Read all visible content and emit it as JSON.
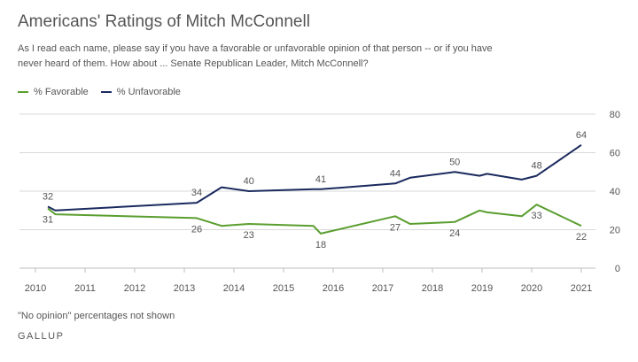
{
  "title": "Americans' Ratings of Mitch McConnell",
  "subtitle": "As I read each name, please say if you have a favorable or unfavorable opinion of that person -- or if you have never heard of them. How about ... Senate Republican Leader, Mitch McConnell?",
  "footnote": "\"No opinion\" percentages not shown",
  "brand": "GALLUP",
  "colors": {
    "favorable": "#5a9e2f",
    "unfavorable": "#1a2a5e",
    "grid": "#d9d9d9"
  },
  "chart_data": {
    "type": "line",
    "xlim": [
      2010,
      2021
    ],
    "ylim": [
      0,
      80
    ],
    "x_ticks": [
      "2010",
      "2011",
      "2012",
      "2013",
      "2014",
      "2015",
      "2016",
      "2017",
      "2018",
      "2019",
      "2020",
      "2021"
    ],
    "y_ticks": [
      "0",
      "20",
      "40",
      "60",
      "80"
    ],
    "grid": true,
    "legend_position": "top-left",
    "series": [
      {
        "name": "% Favorable",
        "color_key": "favorable",
        "x": [
          2010.25,
          2010.4,
          2013.25,
          2013.75,
          2014.3,
          2015.6,
          2015.75,
          2017.25,
          2017.55,
          2018.45,
          2018.95,
          2019.1,
          2019.8,
          2020.1,
          2021.0
        ],
        "y": [
          31,
          28,
          26,
          22,
          23,
          22,
          18,
          27,
          23,
          24,
          30,
          29,
          27,
          33,
          22
        ],
        "labels": [
          {
            "i": 0,
            "text": "31"
          },
          {
            "i": 2,
            "text": "26"
          },
          {
            "i": 4,
            "text": "23"
          },
          {
            "i": 6,
            "text": "18"
          },
          {
            "i": 7,
            "text": "27"
          },
          {
            "i": 9,
            "text": "24"
          },
          {
            "i": 13,
            "text": "33"
          },
          {
            "i": 14,
            "text": "22"
          }
        ]
      },
      {
        "name": "% Unfavorable",
        "color_key": "unfavorable",
        "x": [
          2010.25,
          2010.4,
          2013.25,
          2013.75,
          2014.3,
          2015.6,
          2015.75,
          2017.25,
          2017.55,
          2018.45,
          2018.95,
          2019.1,
          2019.8,
          2020.1,
          2021.0
        ],
        "y": [
          32,
          30,
          34,
          42,
          40,
          41,
          41,
          44,
          47,
          50,
          48,
          49,
          46,
          48,
          64
        ],
        "labels": [
          {
            "i": 0,
            "text": "32"
          },
          {
            "i": 2,
            "text": "34"
          },
          {
            "i": 4,
            "text": "40"
          },
          {
            "i": 6,
            "text": "41"
          },
          {
            "i": 7,
            "text": "44"
          },
          {
            "i": 9,
            "text": "50"
          },
          {
            "i": 13,
            "text": "48"
          },
          {
            "i": 14,
            "text": "64"
          }
        ]
      }
    ]
  }
}
